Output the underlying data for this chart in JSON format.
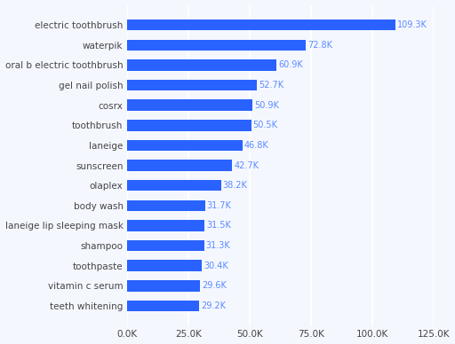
{
  "categories": [
    "electric toothbrush",
    "waterpik",
    "oral b electric toothbrush",
    "gel nail polish",
    "cosrx",
    "toothbrush",
    "laneige",
    "sunscreen",
    "olaplex",
    "body wash",
    "laneige lip sleeping mask",
    "shampoo",
    "toothpaste",
    "vitamin c serum",
    "teeth whitening"
  ],
  "values": [
    109300,
    72800,
    60900,
    52700,
    50900,
    50500,
    46800,
    42700,
    38200,
    31700,
    31500,
    31300,
    30400,
    29600,
    29200
  ],
  "labels": [
    "109.3K",
    "72.8K",
    "60.9K",
    "52.7K",
    "50.9K",
    "50.5K",
    "46.8K",
    "42.7K",
    "38.2K",
    "31.7K",
    "31.5K",
    "31.3K",
    "30.4K",
    "29.6K",
    "29.2K"
  ],
  "bar_color": "#2962ff",
  "label_color": "#5b8cff",
  "background_color": "#f5f7ff",
  "grid_color": "#ffffff",
  "xlim": [
    0,
    125000
  ],
  "xticks": [
    0,
    25000,
    50000,
    75000,
    100000,
    125000
  ],
  "xtick_labels": [
    "0.0K",
    "25.0K",
    "50.0K",
    "75.0K",
    "100.0K",
    "125.0K"
  ],
  "label_fontsize": 7.0,
  "tick_fontsize": 7.5
}
